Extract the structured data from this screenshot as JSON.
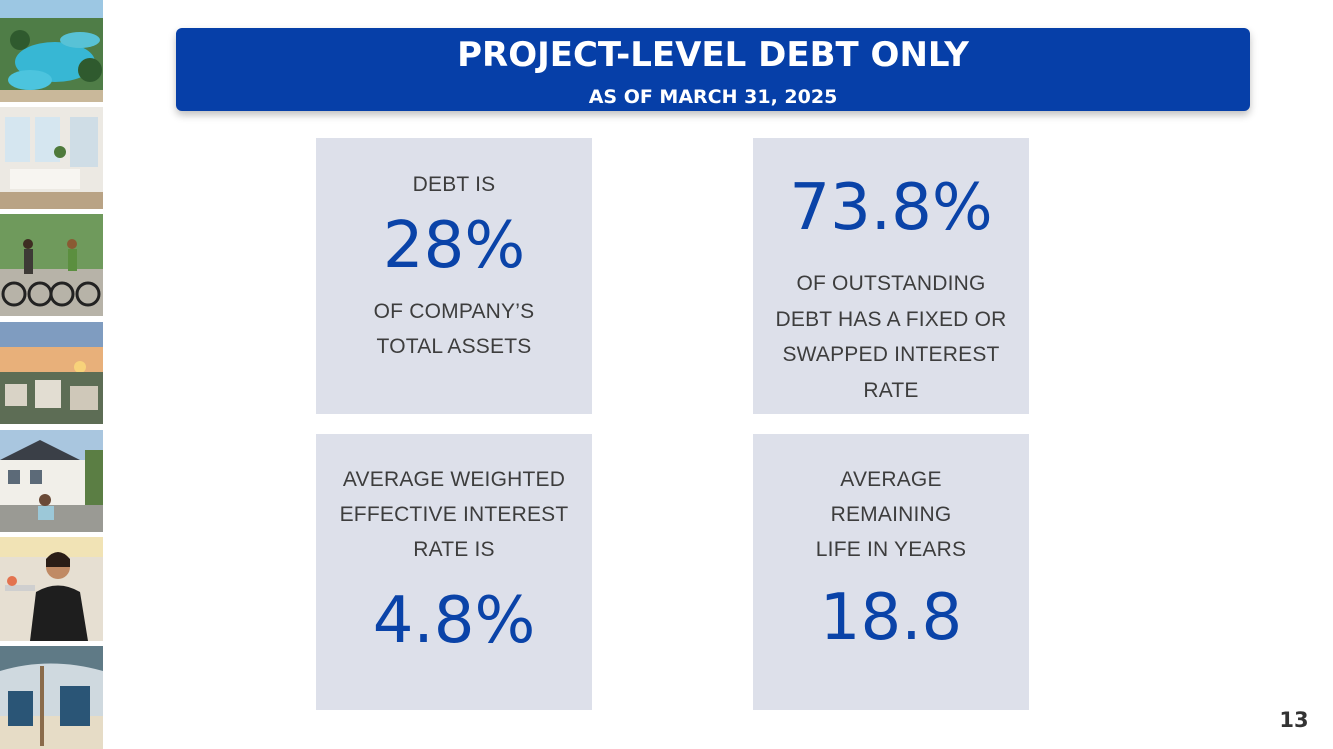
{
  "header": {
    "title": "PROJECT-LEVEL DEBT ONLY",
    "subtitle": "AS OF MARCH 31, 2025"
  },
  "cards": {
    "debt_ratio": {
      "prefix": "DEBT IS",
      "value": "28%",
      "suffix_line1": "OF COMPANY’S",
      "suffix_line2": "TOTAL ASSETS"
    },
    "fixed_rate": {
      "value": "73.8%",
      "line1": "OF OUTSTANDING",
      "line2": "DEBT HAS A FIXED OR",
      "line3": "SWAPPED INTEREST",
      "line4": "RATE"
    },
    "interest_rate": {
      "line1": "AVERAGE WEIGHTED",
      "line2": "EFFECTIVE INTEREST",
      "line3": "RATE IS",
      "value": "4.8%"
    },
    "remaining_life": {
      "line1": "AVERAGE",
      "line2": "REMAINING",
      "line3": "LIFE IN YEARS",
      "value": "18.8"
    }
  },
  "page_number": "13",
  "colors": {
    "banner": "#063fa8",
    "card_background": "#dde0ea",
    "value_text": "#0a43a8"
  },
  "photos": [
    "resort-pool-photo",
    "living-room-photo",
    "cyclists-photo",
    "sunset-neighborhood-photo",
    "house-scooter-photo",
    "waitress-photo",
    "beach-chairs-photo"
  ]
}
